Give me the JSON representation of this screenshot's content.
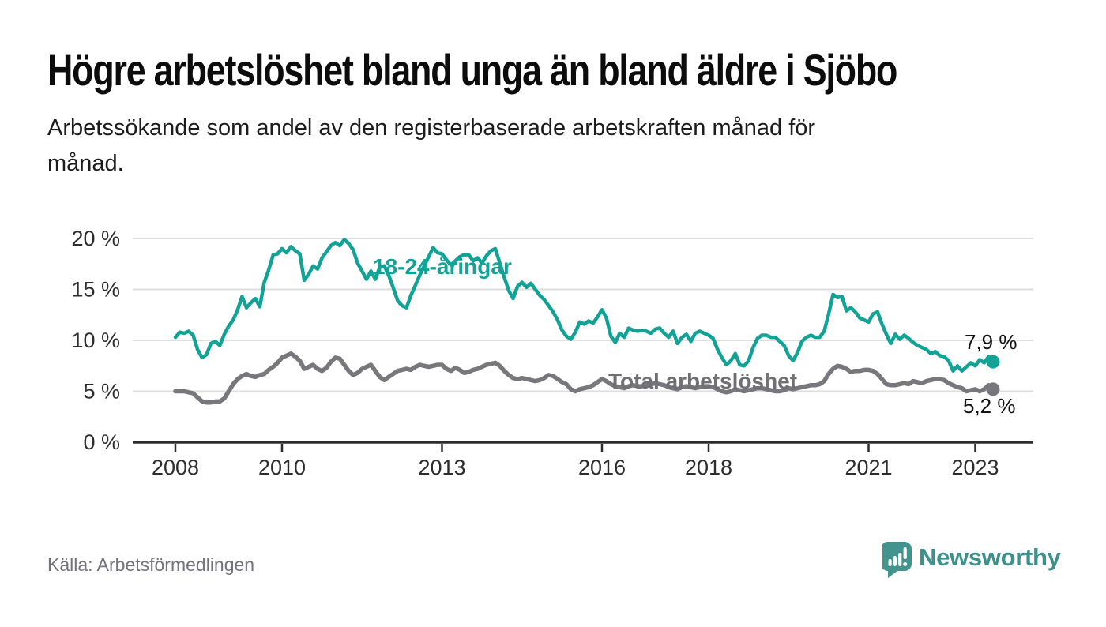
{
  "header": {
    "title": "Högre arbetslöshet bland unga än bland äldre i Sjöbo",
    "subtitle": "Arbetssökande som andel av den registerbaserade arbetskraften månad för\nmånad."
  },
  "footer": {
    "source": "Källa: Arbetsförmedlingen",
    "brand": {
      "logo_icon": "bar-chart-speech-bubble-icon",
      "logo_text": "Newsworthy"
    }
  },
  "colors": {
    "youth_line": "#12a296",
    "total_line": "#78787c",
    "grid": "#dedede",
    "axis": "#2d2d2d",
    "value_label": "#111111",
    "brand_teal": "#3c918c",
    "source_text": "#72727c"
  },
  "chart_data": {
    "type": "line",
    "title": "Högre arbetslöshet bland unga än bland äldre i Sjöbo",
    "subtitle": "Arbetssökande som andel av den registerbaserade arbetskraften månad för månad.",
    "frequency": "monthly",
    "x_start": "2008-01",
    "x_end": "2023-05",
    "grid": true,
    "ylim": [
      0,
      21
    ],
    "y_ticks": [
      {
        "value": 0,
        "label": "0 %"
      },
      {
        "value": 5,
        "label": "5 %"
      },
      {
        "value": 10,
        "label": "10 %"
      },
      {
        "value": 15,
        "label": "15 %"
      },
      {
        "value": 20,
        "label": "20 %"
      }
    ],
    "x_ticks": [
      {
        "year": 2008,
        "label": "2008"
      },
      {
        "year": 2010,
        "label": "2010"
      },
      {
        "year": 2013,
        "label": "2013"
      },
      {
        "year": 2016,
        "label": "2016"
      },
      {
        "year": 2018,
        "label": "2018"
      },
      {
        "year": 2021,
        "label": "2021"
      },
      {
        "year": 2023,
        "label": "2023"
      }
    ],
    "series": [
      {
        "name": "18-24-åringar",
        "color": "#12a296",
        "end_label": "7,9 %",
        "end_value": 7.9,
        "values": [
          10.3,
          10.8,
          10.7,
          10.9,
          10.5,
          9.1,
          8.3,
          8.6,
          9.7,
          9.9,
          9.5,
          10.6,
          11.4,
          12.0,
          13.0,
          14.3,
          13.2,
          13.7,
          14.1,
          13.3,
          15.7,
          16.9,
          18.4,
          18.5,
          19.0,
          18.6,
          19.2,
          18.8,
          18.5,
          15.9,
          16.5,
          17.3,
          17.0,
          18.1,
          18.7,
          19.3,
          19.6,
          19.3,
          19.9,
          19.5,
          18.9,
          17.6,
          16.8,
          16.0,
          16.8,
          16.0,
          17.2,
          17.3,
          16.4,
          15.2,
          13.9,
          13.4,
          13.2,
          14.4,
          15.4,
          16.4,
          17.3,
          18.2,
          19.1,
          18.6,
          18.5,
          17.9,
          17.4,
          17.8,
          18.2,
          18.4,
          18.4,
          17.8,
          18.1,
          17.6,
          18.3,
          18.8,
          19.0,
          17.6,
          16.2,
          14.9,
          14.1,
          15.3,
          15.7,
          15.2,
          15.6,
          15.0,
          14.4,
          14.0,
          13.4,
          12.8,
          12.0,
          11.0,
          10.4,
          10.1,
          10.8,
          11.8,
          11.6,
          11.9,
          11.7,
          12.3,
          13.0,
          12.2,
          10.4,
          9.8,
          10.7,
          10.3,
          11.2,
          11.0,
          10.9,
          11.0,
          10.9,
          10.7,
          11.1,
          11.2,
          10.7,
          10.3,
          10.9,
          9.7,
          10.3,
          10.6,
          9.9,
          10.7,
          10.9,
          10.7,
          10.5,
          10.2,
          9.1,
          8.3,
          7.6,
          8.0,
          8.7,
          7.6,
          7.5,
          8.0,
          9.3,
          10.2,
          10.5,
          10.5,
          10.3,
          10.3,
          9.9,
          9.5,
          8.5,
          8.0,
          8.8,
          9.9,
          10.3,
          10.5,
          10.3,
          10.3,
          10.9,
          12.6,
          14.5,
          14.2,
          14.3,
          12.9,
          13.2,
          12.8,
          12.2,
          12.0,
          11.8,
          12.6,
          12.8,
          11.6,
          10.6,
          9.7,
          10.6,
          10.1,
          10.5,
          10.2,
          9.8,
          9.5,
          9.3,
          9.1,
          8.7,
          8.9,
          8.5,
          8.4,
          8.0,
          7.0,
          7.5,
          7.0,
          7.4,
          7.8,
          7.5,
          8.1,
          7.8,
          8.4,
          7.9
        ]
      },
      {
        "name": "Total arbetslöshet",
        "color": "#78787c",
        "end_label": "5,2 %",
        "end_value": 5.2,
        "values": [
          5.0,
          5.0,
          5.0,
          4.9,
          4.8,
          4.4,
          4.0,
          3.9,
          3.9,
          4.0,
          4.0,
          4.3,
          5.0,
          5.7,
          6.2,
          6.5,
          6.7,
          6.5,
          6.4,
          6.6,
          6.7,
          7.1,
          7.4,
          7.8,
          8.3,
          8.5,
          8.7,
          8.4,
          8.0,
          7.2,
          7.4,
          7.6,
          7.2,
          7.0,
          7.3,
          7.9,
          8.3,
          8.2,
          7.6,
          7.0,
          6.6,
          6.8,
          7.2,
          7.4,
          7.6,
          7.0,
          6.4,
          6.1,
          6.4,
          6.7,
          7.0,
          7.1,
          7.2,
          7.1,
          7.4,
          7.6,
          7.5,
          7.4,
          7.5,
          7.6,
          7.6,
          7.2,
          7.0,
          7.3,
          7.1,
          6.8,
          6.9,
          7.1,
          7.2,
          7.4,
          7.6,
          7.7,
          7.8,
          7.5,
          7.0,
          6.6,
          6.3,
          6.2,
          6.3,
          6.2,
          6.1,
          6.0,
          6.1,
          6.3,
          6.6,
          6.5,
          6.2,
          5.9,
          5.7,
          5.2,
          5.0,
          5.2,
          5.3,
          5.4,
          5.6,
          5.9,
          6.2,
          6.0,
          5.7,
          5.5,
          5.4,
          5.3,
          5.5,
          5.6,
          5.5,
          5.5,
          5.6,
          5.7,
          5.8,
          5.7,
          5.6,
          5.4,
          5.3,
          5.2,
          5.4,
          5.5,
          5.4,
          5.3,
          5.4,
          5.5,
          5.5,
          5.4,
          5.2,
          5.0,
          4.9,
          5.0,
          5.2,
          5.1,
          5.0,
          5.1,
          5.2,
          5.3,
          5.3,
          5.2,
          5.1,
          5.0,
          5.0,
          5.1,
          5.3,
          5.2,
          5.3,
          5.4,
          5.5,
          5.6,
          5.6,
          5.7,
          6.0,
          6.7,
          7.2,
          7.5,
          7.4,
          7.2,
          6.9,
          7.0,
          7.0,
          7.1,
          7.1,
          7.0,
          6.7,
          6.2,
          5.7,
          5.6,
          5.6,
          5.7,
          5.8,
          5.7,
          6.0,
          5.9,
          5.8,
          6.0,
          6.1,
          6.2,
          6.2,
          6.1,
          5.8,
          5.6,
          5.4,
          5.3,
          5.0,
          5.1,
          5.2,
          5.0,
          5.2,
          5.6,
          5.2
        ]
      }
    ]
  }
}
